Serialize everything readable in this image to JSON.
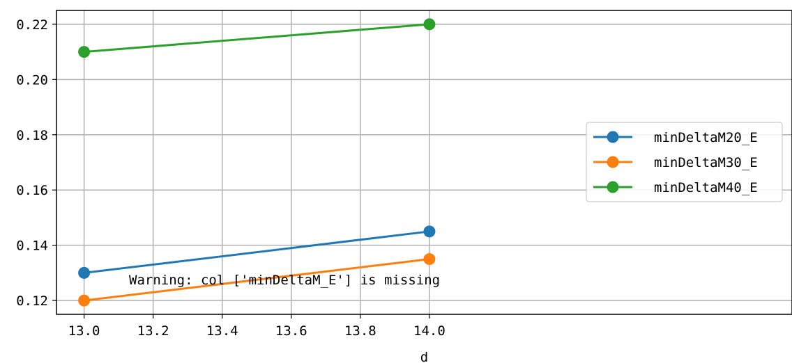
{
  "chart_data": {
    "type": "line",
    "title": "",
    "xlabel": "d",
    "ylabel": "",
    "x": [
      13.0,
      14.0
    ],
    "xlim": [
      12.92,
      15.05
    ],
    "ylim": [
      0.115,
      0.225
    ],
    "xticks": [
      "13.0",
      "13.2",
      "13.4",
      "13.6",
      "13.8",
      "14.0"
    ],
    "xtick_values": [
      13.0,
      13.2,
      13.4,
      13.6,
      13.8,
      14.0
    ],
    "yticks": [
      "0.12",
      "0.14",
      "0.16",
      "0.18",
      "0.20",
      "0.22"
    ],
    "ytick_values": [
      0.12,
      0.14,
      0.16,
      0.18,
      0.2,
      0.22
    ],
    "grid": true,
    "legend_position": "center-right",
    "series": [
      {
        "name": "minDeltaM20_E",
        "values": [
          0.13,
          0.145
        ],
        "color": "#1f77b4"
      },
      {
        "name": "minDeltaM30_E",
        "values": [
          0.12,
          0.135
        ],
        "color": "#ff7f0e"
      },
      {
        "name": "minDeltaM40_E",
        "values": [
          0.21,
          0.22
        ],
        "color": "#2ca02c"
      }
    ],
    "annotation": "Warning: col ['minDeltaM_E'] is missing"
  }
}
